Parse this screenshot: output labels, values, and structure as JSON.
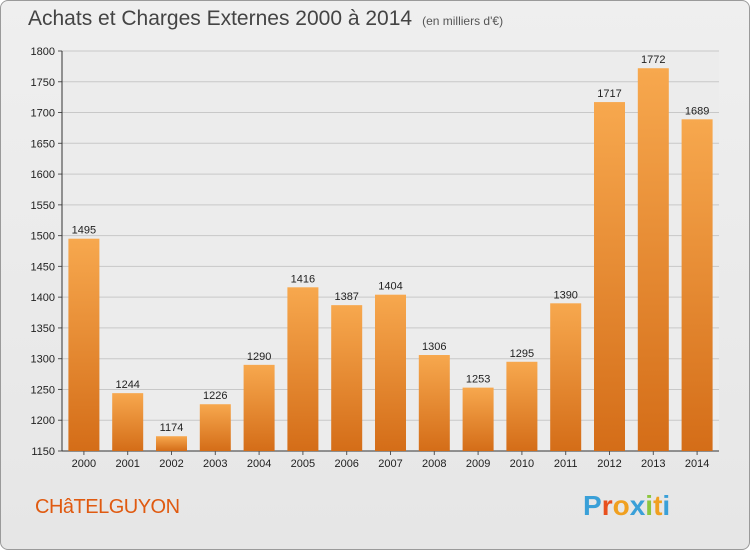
{
  "header": {
    "title": "Achats et Charges Externes 2000 à 2014",
    "subtitle": "(en milliers d'€)"
  },
  "footer": {
    "town": "CHâTELGUYON",
    "logo": "Proxiti"
  },
  "colors": {
    "bar_light": "#f7a84e",
    "bar_dark": "#d46d18",
    "town": "#e05a10"
  },
  "chart_data": {
    "type": "bar",
    "categories": [
      "2000",
      "2001",
      "2002",
      "2003",
      "2004",
      "2005",
      "2006",
      "2007",
      "2008",
      "2009",
      "2010",
      "2011",
      "2012",
      "2013",
      "2014"
    ],
    "values": [
      1495,
      1244,
      1174,
      1226,
      1290,
      1416,
      1387,
      1404,
      1306,
      1253,
      1295,
      1390,
      1717,
      1772,
      1689
    ],
    "ylim": [
      1150,
      1800
    ],
    "yticks": [
      1150,
      1200,
      1250,
      1300,
      1350,
      1400,
      1450,
      1500,
      1550,
      1600,
      1650,
      1700,
      1750,
      1800
    ],
    "grid": true
  }
}
